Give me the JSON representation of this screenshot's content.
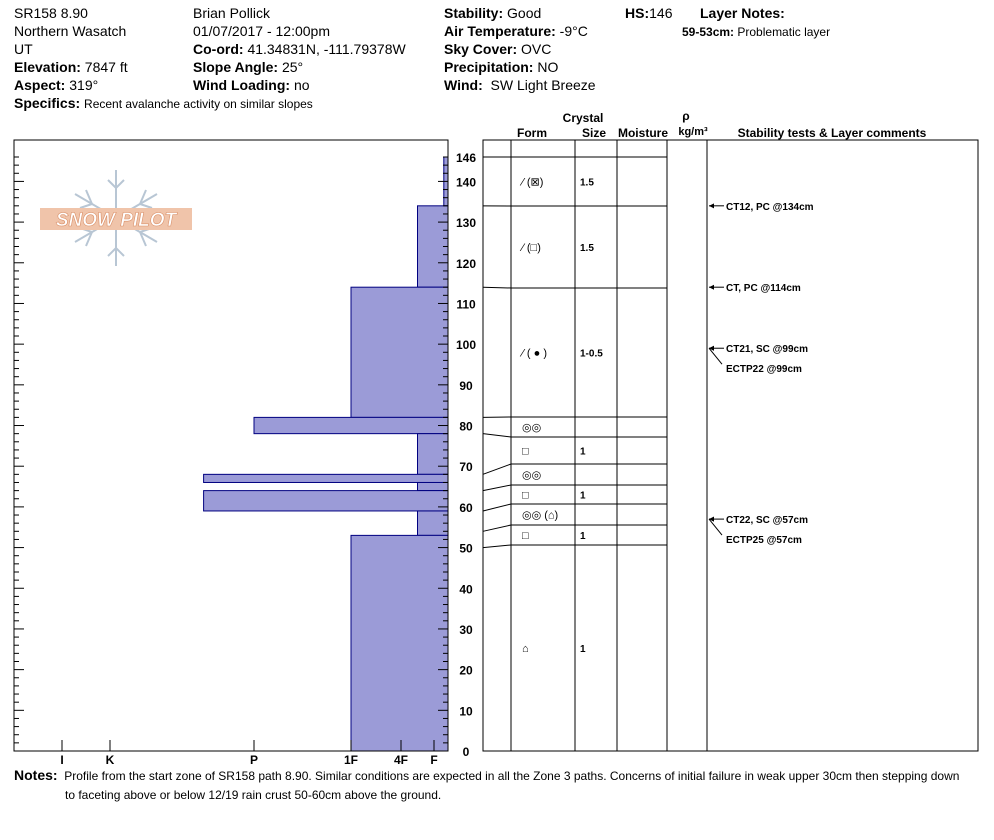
{
  "header": {
    "location": "SR158 8.90",
    "region": "Northern Wasatch",
    "state": "UT",
    "elevation_label": "Elevation:",
    "elevation": "7847 ft",
    "aspect_label": "Aspect:",
    "aspect": "319°",
    "specifics_label": "Specifics:",
    "specifics": "Recent avalanche activity on similar slopes",
    "observer": "Brian Pollick",
    "datetime": "01/07/2017 - 12:00pm",
    "coord_label": "Co-ord:",
    "coord": "41.34831N, -111.79378W",
    "slope_label": "Slope Angle:",
    "slope": "25°",
    "wind_loading_label": "Wind Loading:",
    "wind_loading": "no",
    "stability_label": "Stability:",
    "stability": "Good",
    "air_temp_label": "Air Temperature:",
    "air_temp": "-9°C",
    "sky_label": "Sky Cover:",
    "sky": "OVC",
    "precip_label": "Precipitation:",
    "precip": "NO",
    "wind_label": "Wind:",
    "wind": "SW Light Breeze",
    "hs_label": "HS:",
    "hs": "146",
    "layer_notes_label": "Layer Notes:",
    "layer_note_depth": "59-53cm:",
    "layer_note_text": "Problematic layer"
  },
  "logo_text": "SNOW PILOT",
  "columns": {
    "crystal": "Crystal",
    "form": "Form",
    "size": "Size",
    "moisture": "Moisture",
    "rho": "ρ",
    "density_unit": "kg/m³",
    "tests": "Stability tests & Layer comments"
  },
  "colors": {
    "hardness_fill": "#9b9bd7",
    "hardness_stroke": "#000080"
  },
  "chart_data": {
    "type": "bar",
    "title": "",
    "xlabel": "",
    "ylabel": "",
    "ylim": [
      0,
      146
    ],
    "y_ticks": [
      "0",
      "10",
      "20",
      "30",
      "40",
      "50",
      "60",
      "70",
      "80",
      "90",
      "100",
      "110",
      "120",
      "130",
      "140",
      "146"
    ],
    "hardness_ticks": [
      "I",
      "K",
      "P",
      "1F",
      "4F",
      "F"
    ],
    "hardness_scale_note": "F=1, 4F=2, 1F=3, P=4, K=6, I=7",
    "hardness_profile": [
      {
        "bottom": 134,
        "top": 146,
        "hardness": 0.3
      },
      {
        "bottom": 114,
        "top": 134,
        "hardness": 1.5
      },
      {
        "bottom": 82,
        "top": 114,
        "hardness": 3.0
      },
      {
        "bottom": 78,
        "top": 82,
        "hardness": 4.0
      },
      {
        "bottom": 68,
        "top": 78,
        "hardness": 1.5
      },
      {
        "bottom": 66,
        "top": 68,
        "hardness": 4.7
      },
      {
        "bottom": 64,
        "top": 66,
        "hardness": 1.5
      },
      {
        "bottom": 59,
        "top": 64,
        "hardness": 4.7
      },
      {
        "bottom": 53,
        "top": 59,
        "hardness": 1.5
      },
      {
        "bottom": 0,
        "top": 53,
        "hardness": 3.0
      }
    ],
    "layers": [
      {
        "top": 146,
        "bottom": 134,
        "form": "⁄ (⊠)",
        "size": "1.5"
      },
      {
        "top": 134,
        "bottom": 114,
        "form": "⁄ (□)",
        "size": "1.5"
      },
      {
        "top": 114,
        "bottom": 82,
        "form": "⁄ ( ● )",
        "size": "1-0.5"
      },
      {
        "top": 82,
        "bottom": 78,
        "form": "◎◎",
        "size": ""
      },
      {
        "top": 78,
        "bottom": 68,
        "form": "□",
        "size": "1"
      },
      {
        "top": 68,
        "bottom": 64,
        "form": "◎◎",
        "size": ""
      },
      {
        "top": 64,
        "bottom": 59,
        "form": "□",
        "size": "1"
      },
      {
        "top": 59,
        "bottom": 54,
        "form": "◎◎ (⌂)",
        "size": ""
      },
      {
        "top": 54,
        "bottom": 50,
        "form": "□",
        "size": "1"
      },
      {
        "top": 50,
        "bottom": 0,
        "form": "⌂",
        "size": "1"
      }
    ],
    "tests": [
      {
        "depth": 134,
        "label": "CT12, PC @134cm"
      },
      {
        "depth": 114,
        "label": "CT, PC @114cm"
      },
      {
        "depth": 99,
        "label": "CT21, SC @99cm"
      },
      {
        "depth": 99,
        "label": "ECTP22 @99cm"
      },
      {
        "depth": 57,
        "label": "CT22, SC @57cm"
      },
      {
        "depth": 57,
        "label": "ECTP25 @57cm"
      }
    ]
  },
  "notes": {
    "label": "Notes:",
    "text1": "Profile from the start zone of SR158 path 8.90.  Similar conditions are expected in all the Zone 3 paths.  Concerns of initial failure in weak upper 30cm then stepping down",
    "text2": "to faceting above or below 12/19 rain crust 50-60cm above the ground."
  }
}
